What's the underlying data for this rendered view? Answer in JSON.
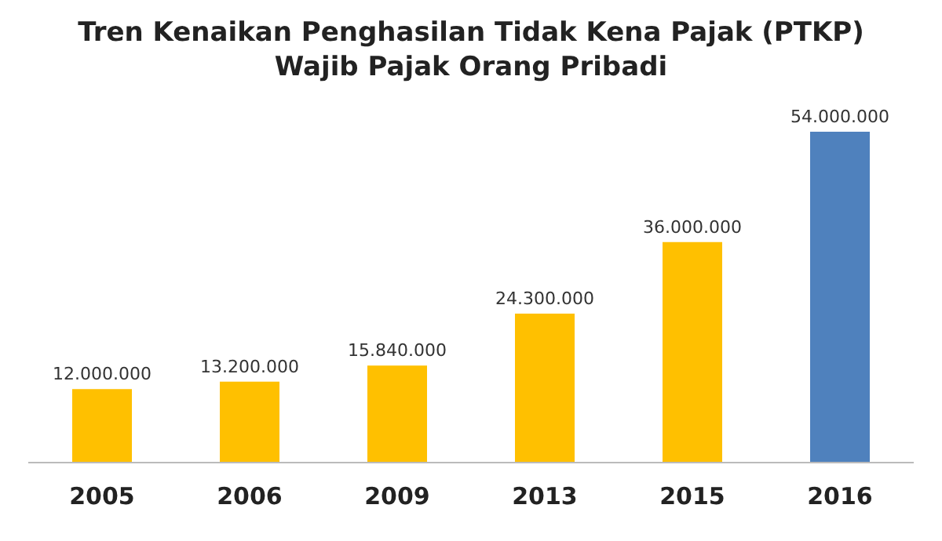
{
  "chart_data": {
    "type": "bar",
    "title": "Tren Kenaikan Penghasilan Tidak Kena Pajak (PTKP)",
    "subtitle": "Wajib Pajak Orang Pribadi",
    "categories": [
      "2005",
      "2006",
      "2009",
      "2013",
      "2015",
      "2016"
    ],
    "values": [
      12000000,
      13200000,
      15840000,
      24300000,
      36000000,
      54000000
    ],
    "colors": [
      "#ffc000",
      "#ffc000",
      "#ffc000",
      "#ffc000",
      "#ffc000",
      "#4f81bd"
    ],
    "value_labels": [
      "12.000.000",
      "13.200.000",
      "15.840.000",
      "24.300.000",
      "36.000.000",
      "54.000.000"
    ],
    "grid": false,
    "legend": false
  }
}
